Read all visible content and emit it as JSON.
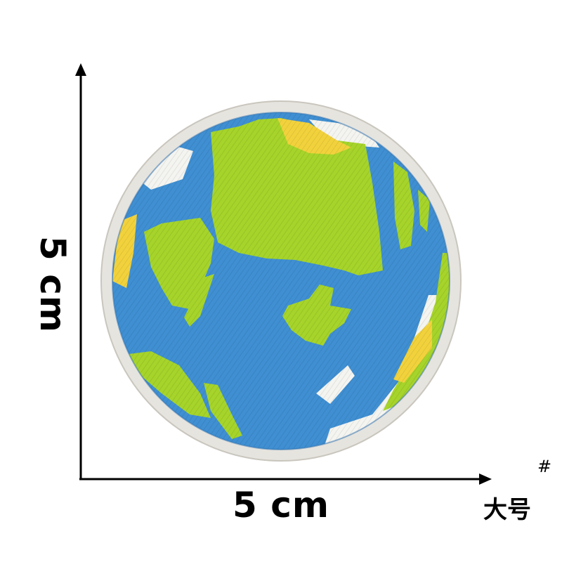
{
  "dimensions": {
    "width_label": "5 cm",
    "height_label": "5 cm"
  },
  "size_tag": {
    "label": "大号",
    "mark": "#"
  },
  "colors": {
    "ocean": "#3f8fd2",
    "land": "#a6d42a",
    "desert": "#f2d23c",
    "clouds": "#f4f4f0",
    "border": "#e6e4de",
    "axis": "#000000"
  }
}
